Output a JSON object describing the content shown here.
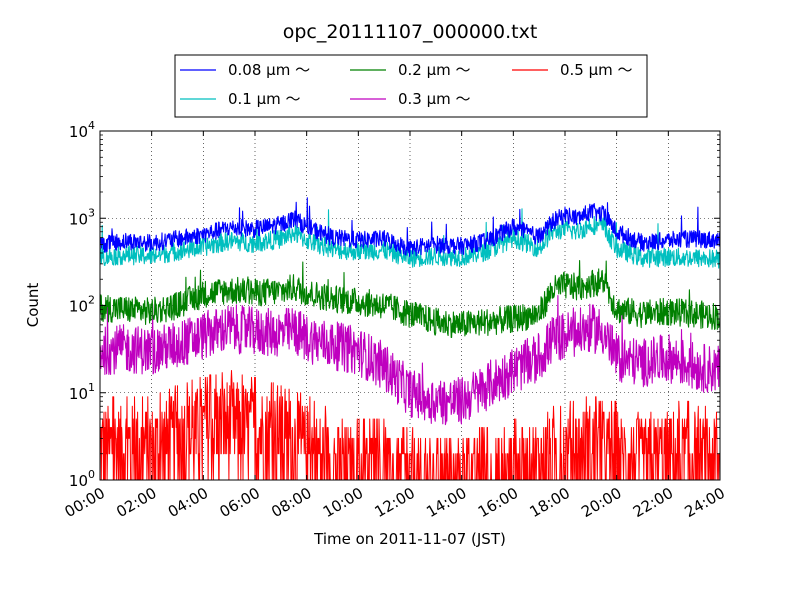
{
  "chart_data": {
    "type": "line",
    "title": "opc_20111107_000000.txt",
    "xlabel": "Time on 2011-11-07 (JST)",
    "ylabel": "Count",
    "y_scale": "log",
    "ylim": [
      1,
      10000
    ],
    "xlim": [
      "00:00",
      "24:00"
    ],
    "grid": true,
    "legend_position": "top (outside plot, above axes)",
    "x_tick_labels": [
      "00:00",
      "02:00",
      "04:00",
      "06:00",
      "08:00",
      "10:00",
      "12:00",
      "14:00",
      "16:00",
      "18:00",
      "20:00",
      "22:00",
      "24:00"
    ],
    "y_tick_labels": [
      {
        "base": "10",
        "exp": "0",
        "value": 1
      },
      {
        "base": "10",
        "exp": "1",
        "value": 10
      },
      {
        "base": "10",
        "exp": "2",
        "value": 100
      },
      {
        "base": "10",
        "exp": "3",
        "value": 1000
      },
      {
        "base": "10",
        "exp": "4",
        "value": 10000
      }
    ],
    "series": [
      {
        "name": "0.08 μm ～",
        "color": "#0000ff",
        "hours": [
          0,
          1,
          2,
          3,
          4,
          5,
          6,
          7,
          7.5,
          8,
          9,
          10,
          11,
          12,
          13,
          14,
          15,
          16,
          17,
          17.5,
          18,
          18.5,
          19,
          19.5,
          20,
          21,
          22,
          23,
          24
        ],
        "values": [
          500,
          550,
          520,
          580,
          650,
          780,
          750,
          850,
          1000,
          800,
          600,
          560,
          580,
          450,
          500,
          480,
          550,
          800,
          600,
          900,
          1100,
          1000,
          1200,
          1100,
          700,
          520,
          560,
          580,
          560
        ]
      },
      {
        "name": "0.1 μm ～",
        "color": "#00bfbf",
        "hours": [
          0,
          1,
          2,
          3,
          4,
          5,
          6,
          7,
          7.5,
          8,
          9,
          10,
          11,
          12,
          13,
          14,
          15,
          16,
          17,
          17.5,
          18,
          18.5,
          19,
          19.5,
          20,
          21,
          22,
          23,
          24
        ],
        "values": [
          360,
          380,
          370,
          420,
          470,
          550,
          520,
          580,
          680,
          560,
          440,
          420,
          430,
          350,
          370,
          360,
          420,
          600,
          450,
          700,
          750,
          700,
          850,
          800,
          450,
          350,
          360,
          350,
          340
        ]
      },
      {
        "name": "0.2 μm ～",
        "color": "#008000",
        "hours": [
          0,
          1,
          2,
          3,
          4,
          5,
          6,
          7,
          7.5,
          8,
          9,
          10,
          11,
          12,
          13,
          14,
          15,
          16,
          17,
          17.5,
          18,
          18.5,
          19,
          19.5,
          20,
          21,
          22,
          23,
          24
        ],
        "values": [
          95,
          90,
          85,
          100,
          135,
          150,
          140,
          145,
          160,
          140,
          120,
          110,
          100,
          80,
          65,
          60,
          65,
          70,
          80,
          150,
          170,
          160,
          180,
          190,
          90,
          80,
          85,
          80,
          75
        ]
      },
      {
        "name": "0.3 μm ～",
        "color": "#bf00bf",
        "hours": [
          0,
          1,
          2,
          3,
          4,
          5,
          6,
          7,
          7.5,
          8,
          9,
          10,
          11,
          12,
          13,
          14,
          15,
          16,
          17,
          17.5,
          18,
          18.5,
          19,
          19.5,
          20,
          21,
          22,
          23,
          24
        ],
        "values": [
          30,
          32,
          30,
          35,
          45,
          55,
          50,
          48,
          52,
          42,
          35,
          30,
          20,
          10,
          8,
          8,
          12,
          18,
          25,
          40,
          45,
          48,
          55,
          50,
          25,
          22,
          25,
          20,
          18
        ]
      },
      {
        "name": "0.5 μm ～",
        "color": "#ff0000",
        "hours": [
          0,
          1,
          2,
          3,
          4,
          5,
          6,
          7,
          8,
          9,
          10,
          11,
          12,
          13,
          14,
          15,
          16,
          17,
          18,
          19,
          20,
          21,
          22,
          23,
          24
        ],
        "values": [
          3,
          3,
          3,
          4,
          5,
          6,
          5,
          4,
          3,
          2,
          1.5,
          1.5,
          1.2,
          1.1,
          1.1,
          1.2,
          1.5,
          2,
          2.5,
          3,
          2.5,
          2,
          2.5,
          2.5,
          2
        ]
      }
    ]
  }
}
